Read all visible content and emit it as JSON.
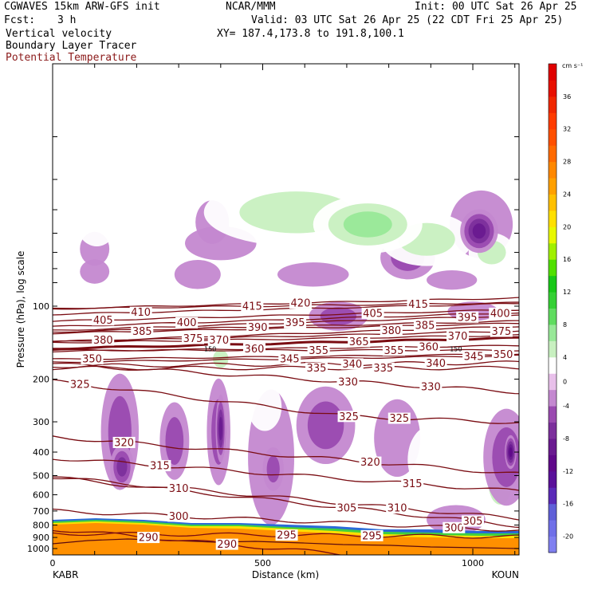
{
  "header": {
    "model": "CGWAVES 15km ARW-GFS init",
    "org": "NCAR/MMM",
    "init": "Init: 00 UTC Sat 26 Apr 25",
    "fcst_label": "Fcst:",
    "fcst_value": "3 h",
    "valid": "Valid: 03 UTC Sat 26 Apr 25 (22 CDT Fri 25 Apr 25)",
    "xy": "XY= 187.4,173.8 to 191.8,100.1",
    "field1": "Vertical velocity",
    "field2": "Boundary Layer Tracer",
    "field3": "Potential Temperature",
    "field3_color": "#8b1a1a"
  },
  "chart_data": {
    "type": "contour",
    "xlabel": "Distance (km)",
    "ylabel": "Pressure (hPa), log scale",
    "xlim": [
      0,
      1110
    ],
    "x_ticks": [
      0,
      500,
      1000
    ],
    "y_ticks": [
      100,
      200,
      300,
      400,
      500,
      600,
      700,
      800,
      900,
      1000
    ],
    "y_scale": "log",
    "left_endpoint": "KABR",
    "right_endpoint": "KOUN",
    "theta_color": "#7a0c12",
    "theta_contours": [
      {
        "value": 290,
        "label_x": 415,
        "label_p": 960
      },
      {
        "value": 290,
        "label_x": 228,
        "label_p": 900
      },
      {
        "value": 295,
        "label_x": 557,
        "label_p": 880
      },
      {
        "value": 295,
        "label_x": 760,
        "label_p": 885
      },
      {
        "value": 300,
        "label_x": 300,
        "label_p": 735
      },
      {
        "value": 300,
        "label_x": 955,
        "label_p": 820
      },
      {
        "value": 305,
        "label_x": 700,
        "label_p": 680
      },
      {
        "value": 305,
        "label_x": 1000,
        "label_p": 770
      },
      {
        "value": 310,
        "label_x": 300,
        "label_p": 565
      },
      {
        "value": 310,
        "label_x": 820,
        "label_p": 680
      },
      {
        "value": 315,
        "label_x": 255,
        "label_p": 455
      },
      {
        "value": 315,
        "label_x": 856,
        "label_p": 540
      },
      {
        "value": 320,
        "label_x": 170,
        "label_p": 365
      },
      {
        "value": 320,
        "label_x": 756,
        "label_p": 440
      },
      {
        "value": 325,
        "label_x": 65,
        "label_p": 210
      },
      {
        "value": 325,
        "label_x": 705,
        "label_p": 285
      },
      {
        "value": 325,
        "label_x": 825,
        "label_p": 290
      },
      {
        "value": 330,
        "label_x": 703,
        "label_p": 205
      },
      {
        "value": 330,
        "label_x": 900,
        "label_p": 215
      },
      {
        "value": 335,
        "label_x": 628,
        "label_p": 180
      },
      {
        "value": 335,
        "label_x": 787,
        "label_p": 180
      },
      {
        "value": 340,
        "label_x": 713,
        "label_p": 173
      },
      {
        "value": 340,
        "label_x": 912,
        "label_p": 172
      },
      {
        "value": 345,
        "label_x": 564,
        "label_p": 165
      },
      {
        "value": 345,
        "label_x": 1002,
        "label_p": 161
      },
      {
        "value": 350,
        "label_x": 94,
        "label_p": 165
      },
      {
        "value": 350,
        "label_x": 1072,
        "label_p": 158
      },
      {
        "value": 355,
        "label_x": 633,
        "label_p": 152
      },
      {
        "value": 355,
        "label_x": 812,
        "label_p": 152
      },
      {
        "value": 360,
        "label_x": 480,
        "label_p": 150
      },
      {
        "value": 360,
        "label_x": 895,
        "label_p": 147
      },
      {
        "value": 365,
        "label_x": 729,
        "label_p": 140
      },
      {
        "value": 370,
        "label_x": 396,
        "label_p": 138
      },
      {
        "value": 370,
        "label_x": 964,
        "label_p": 133
      },
      {
        "value": 375,
        "label_x": 334,
        "label_p": 136
      },
      {
        "value": 375,
        "label_x": 1068,
        "label_p": 127
      },
      {
        "value": 380,
        "label_x": 120,
        "label_p": 138
      },
      {
        "value": 380,
        "label_x": 806,
        "label_p": 126
      },
      {
        "value": 385,
        "label_x": 213,
        "label_p": 127
      },
      {
        "value": 385,
        "label_x": 886,
        "label_p": 120
      },
      {
        "value": 390,
        "label_x": 488,
        "label_p": 122
      },
      {
        "value": 395,
        "label_x": 577,
        "label_p": 117
      },
      {
        "value": 395,
        "label_x": 987,
        "label_p": 111
      },
      {
        "value": 400,
        "label_x": 319,
        "label_p": 117
      },
      {
        "value": 400,
        "label_x": 1065,
        "label_p": 107
      },
      {
        "value": 405,
        "label_x": 120,
        "label_p": 114
      },
      {
        "value": 405,
        "label_x": 762,
        "label_p": 107
      },
      {
        "value": 410,
        "label_x": 210,
        "label_p": 106
      },
      {
        "value": 415,
        "label_x": 475,
        "label_p": 100
      },
      {
        "value": 415,
        "label_x": 870,
        "label_p": 98
      },
      {
        "value": 420,
        "label_x": 590,
        "label_p": 97
      }
    ],
    "tropopause_markers": [
      {
        "label": "150",
        "x": 375
      },
      {
        "label": "150",
        "x": 960
      }
    ],
    "vv_cells": [
      {
        "x": 105,
        "p": 42,
        "rx": 55,
        "ry": 0.13,
        "v": 3
      },
      {
        "x": 100,
        "p": 58,
        "rx": 35,
        "ry": 0.07,
        "v": -2
      },
      {
        "x": 580,
        "p": 41,
        "rx": 220,
        "ry": 0.14,
        "v": 5
      },
      {
        "x": 750,
        "p": 46,
        "rx": 130,
        "ry": 0.12,
        "v": 7
      },
      {
        "x": 890,
        "p": 53,
        "rx": 110,
        "ry": 0.11,
        "v": 5
      },
      {
        "x": 1020,
        "p": 66,
        "rx": 60,
        "ry": 0.09,
        "v": 3
      },
      {
        "x": 1020,
        "p": 46,
        "rx": 75,
        "ry": 0.14,
        "v": -3
      },
      {
        "x": 1015,
        "p": 49,
        "rx": 45,
        "ry": 0.09,
        "v": -8
      },
      {
        "x": 380,
        "p": 45,
        "rx": 40,
        "ry": 0.09,
        "v": -3
      },
      {
        "x": 400,
        "p": 55,
        "rx": 85,
        "ry": 0.07,
        "v": -3
      },
      {
        "x": 240,
        "p": 58,
        "rx": 75,
        "ry": 0.07,
        "v": 3
      },
      {
        "x": 620,
        "p": 59,
        "rx": 45,
        "ry": 0.07,
        "v": 3
      },
      {
        "x": 845,
        "p": 63,
        "rx": 65,
        "ry": 0.09,
        "v": -4
      },
      {
        "x": 1045,
        "p": 60,
        "rx": 55,
        "ry": 0.08,
        "v": 4
      },
      {
        "x": 100,
        "p": 72,
        "rx": 35,
        "ry": 0.05,
        "v": -2
      },
      {
        "x": 345,
        "p": 74,
        "rx": 55,
        "ry": 0.06,
        "v": -3
      },
      {
        "x": 620,
        "p": 74,
        "rx": 85,
        "ry": 0.05,
        "v": -3
      },
      {
        "x": 950,
        "p": 78,
        "rx": 60,
        "ry": 0.04,
        "v": -3
      },
      {
        "x": 110,
        "p": 100,
        "rx": 65,
        "ry": 0.06,
        "v": 3
      },
      {
        "x": 430,
        "p": 94,
        "rx": 50,
        "ry": 0.04,
        "v": 3
      },
      {
        "x": 680,
        "p": 110,
        "rx": 70,
        "ry": 0.06,
        "v": -4
      },
      {
        "x": 1000,
        "p": 105,
        "rx": 60,
        "ry": 0.04,
        "v": -3
      },
      {
        "x": 400,
        "p": 165,
        "rx": 30,
        "ry": 0.06,
        "v": 4
      },
      {
        "x": 160,
        "p": 330,
        "rx": 45,
        "ry": 0.24,
        "v": -4
      },
      {
        "x": 165,
        "p": 460,
        "rx": 28,
        "ry": 0.09,
        "v": -6
      },
      {
        "x": 290,
        "p": 360,
        "rx": 35,
        "ry": 0.16,
        "v": -4
      },
      {
        "x": 395,
        "p": 330,
        "rx": 28,
        "ry": 0.22,
        "v": -5
      },
      {
        "x": 400,
        "p": 320,
        "rx": 12,
        "ry": 0.14,
        "v": -9
      },
      {
        "x": 440,
        "p": 280,
        "rx": 28,
        "ry": 0.1,
        "v": 3
      },
      {
        "x": 520,
        "p": 420,
        "rx": 55,
        "ry": 0.28,
        "v": -3
      },
      {
        "x": 525,
        "p": 470,
        "rx": 25,
        "ry": 0.09,
        "v": -5
      },
      {
        "x": 505,
        "p": 260,
        "rx": 40,
        "ry": 0.1,
        "v": 3
      },
      {
        "x": 650,
        "p": 310,
        "rx": 70,
        "ry": 0.16,
        "v": -4
      },
      {
        "x": 730,
        "p": 255,
        "rx": 60,
        "ry": 0.1,
        "v": 3
      },
      {
        "x": 820,
        "p": 350,
        "rx": 55,
        "ry": 0.16,
        "v": -3
      },
      {
        "x": 900,
        "p": 430,
        "rx": 55,
        "ry": 0.14,
        "v": 3
      },
      {
        "x": 1080,
        "p": 420,
        "rx": 55,
        "ry": 0.2,
        "v": -5
      },
      {
        "x": 1090,
        "p": 400,
        "rx": 14,
        "ry": 0.07,
        "v": -10
      },
      {
        "x": 1065,
        "p": 540,
        "rx": 45,
        "ry": 0.14,
        "v": 4
      },
      {
        "x": 960,
        "p": 760,
        "rx": 70,
        "ry": 0.06,
        "v": -3
      },
      {
        "x": 140,
        "p": 760,
        "rx": 55,
        "ry": 0.06,
        "v": 3
      }
    ],
    "colorbar": {
      "unit": "cm s⁻¹",
      "levels": [
        -22,
        -20,
        -18,
        -16,
        -14,
        -12,
        -10,
        -8,
        -6,
        -4,
        -2,
        2,
        4,
        6,
        8,
        10,
        12,
        14,
        16,
        18,
        20,
        22,
        24,
        26,
        28,
        30,
        32,
        34,
        36,
        38,
        40
      ],
      "colors": [
        "#8080f0",
        "#7070e8",
        "#6060d8",
        "#5a2ab8",
        "#5a109a",
        "#60088a",
        "#6a1a90",
        "#7c2f9c",
        "#9a4ab0",
        "#c488d0",
        "#e8c0ea",
        "#ffffff",
        "#c8f0c0",
        "#98e898",
        "#60dc60",
        "#34d034",
        "#18c818",
        "#50e000",
        "#a0f000",
        "#e8f800",
        "#ffe000",
        "#ffc000",
        "#ffa000",
        "#ff8800",
        "#ff6a00",
        "#ff5000",
        "#ff3c00",
        "#f02800",
        "#e81000",
        "#e00000"
      ],
      "tick_labels": [
        "-20",
        "-16",
        "-12",
        "-8",
        "-4",
        "0",
        "4",
        "8",
        "12",
        "16",
        "20",
        "24",
        "28",
        "32",
        "36"
      ]
    }
  }
}
